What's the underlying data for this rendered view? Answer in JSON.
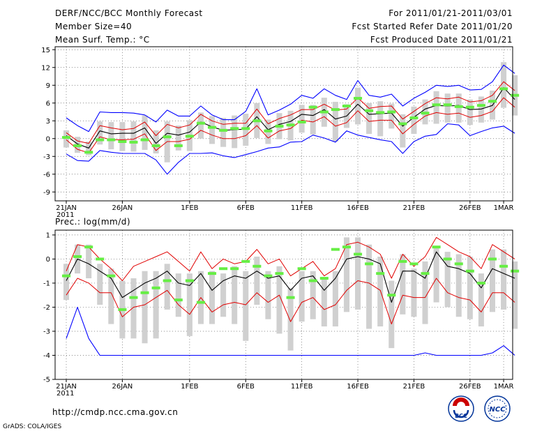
{
  "header": {
    "title": "DERF/NCC/BCC Monthly Forecast",
    "member_size": "Member Size=40",
    "variable": "Mean Surf. Temp.: °C",
    "period": "For 2011/01/21-2011/03/01",
    "started": "Fcst Started Refer Date 2011/01/20",
    "produced": "Fcst Produced Date 2011/01/21"
  },
  "footer": {
    "url": "http://cmdp.ncc.cma.gov.cn",
    "credit": "GrADS: COLA/IGES",
    "logo_bcc": "BCC",
    "logo_ncc": "NCC"
  },
  "x_labels": [
    {
      "day": 0,
      "label": "21JAN",
      "sub": "2011"
    },
    {
      "day": 5,
      "label": "26JAN"
    },
    {
      "day": 11,
      "label": "1FEB"
    },
    {
      "day": 16,
      "label": "6FEB"
    },
    {
      "day": 21,
      "label": "11FEB"
    },
    {
      "day": 26,
      "label": "16FEB"
    },
    {
      "day": 31,
      "label": "21FEB"
    },
    {
      "day": 36,
      "label": "26FEB"
    },
    {
      "day": 39,
      "label": "1MAR"
    }
  ],
  "colors": {
    "max": "#0000ff",
    "min": "#0000ff",
    "pct": "#e00000",
    "mean": "#000000",
    "box": "#d0d0d0",
    "obs": "#66ee44"
  },
  "chart_data": [
    {
      "type": "line",
      "title": "Mean Surf. Temp.: °C",
      "ylim": [
        -10.5,
        15.5
      ],
      "yticks": [
        -9,
        -6,
        -3,
        0,
        3,
        6,
        9,
        12,
        15
      ],
      "series": [
        {
          "name": "max",
          "values": [
            3.5,
            2.2,
            1.2,
            4.5,
            4.4,
            4.4,
            4.3,
            4,
            2.8,
            4.8,
            3.8,
            3.8,
            5.5,
            4,
            3.2,
            3.2,
            4.6,
            8.4,
            4,
            4.8,
            5.8,
            7.3,
            6.8,
            8.4,
            7.3,
            6.6,
            9.8,
            7.3,
            7,
            7.5,
            5.5,
            6.8,
            7.8,
            9,
            8.8,
            9,
            8.2,
            8.3,
            9.6,
            12.4,
            11
          ]
        },
        {
          "name": "p90",
          "values": [
            1,
            -0.4,
            -0.8,
            2.2,
            1.8,
            1.5,
            1.7,
            2.8,
            0.5,
            2.4,
            1.8,
            2.3,
            4.1,
            3,
            2.4,
            2.6,
            2.6,
            5,
            2.5,
            3.4,
            4,
            4.9,
            4.9,
            5.8,
            4.8,
            5,
            6.9,
            5.1,
            5.4,
            5.5,
            3.3,
            4.6,
            5.9,
            6.9,
            6.7,
            7,
            6.2,
            6.4,
            7.3,
            9.6,
            8.1
          ]
        },
        {
          "name": "mean",
          "values": [
            0.5,
            -0.9,
            -1.6,
            1.3,
            0.8,
            0.9,
            0.9,
            1.8,
            -0.8,
            0.9,
            0.6,
            1.1,
            2.8,
            2,
            1.4,
            1.5,
            1.6,
            3.7,
            1.5,
            2.4,
            2.9,
            4.1,
            3.9,
            4.9,
            3.3,
            3.8,
            5.8,
            4.1,
            4.2,
            4.3,
            2.1,
            3.6,
            5,
            5.6,
            5.5,
            5.6,
            4.9,
            5,
            5.6,
            8.6,
            6.6
          ]
        },
        {
          "name": "p10",
          "values": [
            -0.2,
            -1.8,
            -2.4,
            0.3,
            -0.2,
            -0.2,
            -0.1,
            0.8,
            -2,
            -0.5,
            -0.5,
            -0.1,
            1.4,
            0.6,
            0,
            0,
            0.5,
            2.2,
            0.1,
            1.3,
            1.7,
            3.1,
            2.8,
            3.7,
            2.1,
            2.7,
            4.7,
            2.9,
            3.1,
            3.1,
            0.8,
            2.4,
            3.8,
            4.4,
            4.1,
            4.3,
            3.6,
            3.9,
            4.6,
            6.9,
            5.3
          ]
        },
        {
          "name": "min",
          "values": [
            -2.6,
            -3.7,
            -3.8,
            -2,
            -2.3,
            -2.5,
            -2.5,
            -2.5,
            -3.6,
            -6,
            -4,
            -2.5,
            -2.5,
            -2.4,
            -2.9,
            -3.2,
            -2.7,
            -2.2,
            -1.6,
            -1.4,
            -0.6,
            -0.5,
            0.6,
            0.1,
            -0.6,
            1.3,
            0.6,
            0.2,
            -0.2,
            -0.5,
            -2.5,
            -0.5,
            0.4,
            0.7,
            2.5,
            2.3,
            0.5,
            1.2,
            1.8,
            2.1,
            0.9
          ]
        },
        {
          "name": "box_low",
          "values": [
            -1.5,
            -2.4,
            -2.8,
            -1,
            -1.8,
            -2.1,
            -2.2,
            -1.9,
            -2.5,
            -4,
            -2,
            -2.1,
            0,
            -0.9,
            -1.4,
            -1.6,
            -1.2,
            0.1,
            -0.9,
            -0.1,
            -0.3,
            1,
            0.7,
            2,
            -0.5,
            1.8,
            2.4,
            0.8,
            0.4,
            1.7,
            -1.5,
            0.8,
            2.4,
            2.5,
            2.7,
            2.7,
            2.3,
            2.7,
            3.2,
            5.2,
            3.9
          ]
        },
        {
          "name": "box_high",
          "values": [
            1.4,
            0.3,
            -0.5,
            2.9,
            2.8,
            2.8,
            2.9,
            3.9,
            1.4,
            2.9,
            2.2,
            3.1,
            4.4,
            3.8,
            3.5,
            3.9,
            4.2,
            6,
            3.2,
            4.3,
            4.7,
            5.7,
            5.7,
            6.9,
            6.2,
            5.8,
            8.6,
            6,
            6.3,
            5.9,
            4.1,
            5.4,
            6.6,
            8,
            7.6,
            7.6,
            6.6,
            7.1,
            8.1,
            12.9,
            10.7
          ]
        },
        {
          "name": "obs",
          "values": [
            0.2,
            -1.2,
            -2.3,
            -0.2,
            -0.2,
            -0.5,
            -0.6,
            -0.2,
            -1.2,
            0.3,
            -1.2,
            0.4,
            2.6,
            1.9,
            1.4,
            1.7,
            1.7,
            3,
            1.3,
            2.1,
            2.3,
            2.8,
            5.3,
            4.5,
            4.9,
            5.5,
            6.8,
            4.7,
            4.4,
            4.5,
            2.5,
            3.5,
            4.3,
            5.7,
            5.7,
            5.4,
            5.3,
            5.6,
            6.3,
            8.4,
            7.3
          ]
        }
      ]
    },
    {
      "type": "line",
      "title": "Prec.: log(mm/d)",
      "ylim": [
        -5,
        1.2
      ],
      "yticks": [
        -5,
        -4,
        -3,
        -2,
        -1,
        0,
        1
      ],
      "series": [
        {
          "name": "max",
          "values": [
            -3.3,
            -2,
            -3.3,
            -4,
            -4,
            -4,
            -4,
            -4,
            -4,
            -4,
            -4,
            -4,
            -4,
            -4,
            -4,
            -4,
            -4,
            -4,
            -4,
            -4,
            -4,
            -4,
            -4,
            -4,
            -4,
            -4,
            -4,
            -4,
            -4,
            -4,
            -4,
            -4,
            -3.9,
            -4,
            -4,
            -4,
            -4,
            -4,
            -3.9,
            -3.6,
            -4
          ]
        },
        {
          "name": "p90",
          "values": [
            -0.5,
            0.6,
            0.5,
            0,
            -0.4,
            -0.9,
            -0.3,
            -0.1,
            0.1,
            0.3,
            -0.1,
            -0.5,
            0.3,
            -0.4,
            0,
            -0.2,
            -0.1,
            0.4,
            -0.2,
            0,
            -0.7,
            -0.4,
            -0.1,
            -0.7,
            -0.4,
            0.6,
            0.7,
            0.5,
            0.2,
            -0.8,
            0.2,
            -0.3,
            0.1,
            0.9,
            0.6,
            0.3,
            0.1,
            -0.4,
            0.6,
            0.3,
            0
          ]
        },
        {
          "name": "mean",
          "values": [
            -0.9,
            0,
            -0.2,
            -0.5,
            -0.8,
            -1.6,
            -1.3,
            -1,
            -0.8,
            -0.5,
            -1,
            -1.1,
            -0.6,
            -1.3,
            -0.9,
            -0.7,
            -0.8,
            -0.5,
            -0.8,
            -0.7,
            -1.3,
            -0.8,
            -0.7,
            -1.3,
            -0.8,
            0,
            0.1,
            0,
            -0.2,
            -1.8,
            -0.5,
            -0.5,
            -0.8,
            0.3,
            -0.3,
            -0.4,
            -0.6,
            -1.2,
            -0.4,
            -0.6,
            -0.8
          ]
        },
        {
          "name": "p10",
          "values": [
            -1.5,
            -0.8,
            -1,
            -1.4,
            -1.4,
            -2.4,
            -2,
            -1.9,
            -1.6,
            -1.3,
            -1.9,
            -2.3,
            -1.6,
            -2.2,
            -1.9,
            -1.8,
            -1.9,
            -1.4,
            -1.8,
            -1.5,
            -2.6,
            -1.8,
            -1.6,
            -2.1,
            -1.9,
            -1.3,
            -0.9,
            -1,
            -1.3,
            -2.7,
            -1.5,
            -1.6,
            -1.6,
            -0.8,
            -1.4,
            -1.6,
            -1.7,
            -2.2,
            -1.4,
            -1.4,
            -1.8
          ]
        },
        {
          "name": "box_low",
          "values": [
            -1.7,
            -0.6,
            -0.8,
            -1.9,
            -2.7,
            -3.3,
            -3.3,
            -3.5,
            -3.3,
            -2.1,
            -2.4,
            -3.2,
            -2.7,
            -2.7,
            -2.4,
            -2.7,
            -3.4,
            -1.9,
            -2.5,
            -3.1,
            -3.8,
            -2.6,
            -2.5,
            -2.8,
            -2.8,
            -2.2,
            -2.1,
            -2.9,
            -2.8,
            -3.7,
            -2.3,
            -2.4,
            -2.7,
            -1.8,
            -2,
            -2.4,
            -2.5,
            -2.8,
            -2.2,
            -2.1,
            -2.9
          ]
        },
        {
          "name": "box_high",
          "values": [
            -0.2,
            0.6,
            0.6,
            -0.2,
            -0.4,
            -0.9,
            -0.8,
            -0.5,
            -0.5,
            -0.2,
            -0.6,
            -0.6,
            -0.5,
            -0.5,
            -0.6,
            -0.3,
            -0.5,
            0.1,
            -0.5,
            -0.3,
            -1.2,
            -0.5,
            -0.5,
            -0.8,
            -0.5,
            0.9,
            0.9,
            0.6,
            0.1,
            -0.9,
            0.2,
            -0.4,
            -0.1,
            0.5,
            0.3,
            0.2,
            0.1,
            -0.6,
            0.4,
            0.4,
            -0.1
          ]
        },
        {
          "name": "obs",
          "values": [
            -0.7,
            0.1,
            0.5,
            0,
            -0.7,
            -2.1,
            -1.6,
            -1.4,
            -1.2,
            -0.9,
            -1.7,
            -0.9,
            -1.8,
            -0.6,
            -0.4,
            -0.4,
            -0.1,
            -0.3,
            -0.7,
            -0.6,
            -1.6,
            -0.4,
            -0.9,
            -0.8,
            0.4,
            0.5,
            0.2,
            -0.2,
            -0.6,
            -1.5,
            -0.1,
            -0.2,
            -0.6,
            0.5,
            0,
            -0.2,
            -0.5,
            -1,
            0,
            -0.3,
            -0.5
          ]
        }
      ]
    }
  ]
}
